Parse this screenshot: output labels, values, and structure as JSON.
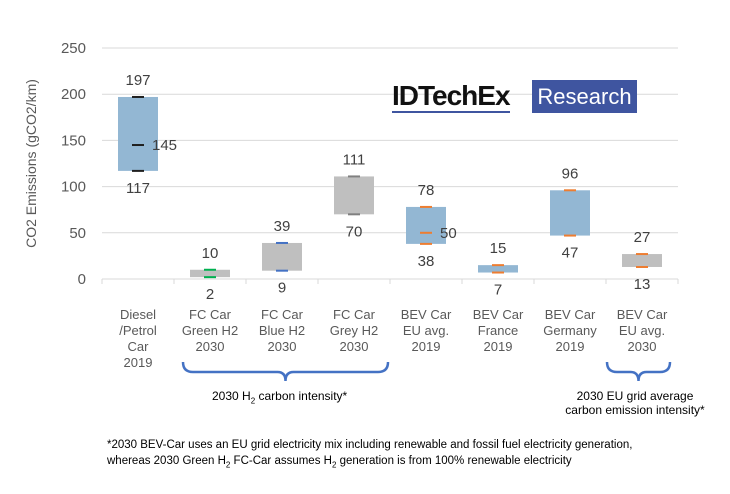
{
  "chart_data": {
    "type": "floating-bar",
    "ylabel": "CO2 Emissions (gCO2/km)",
    "ylim": [
      0,
      250
    ],
    "yticks": [
      0,
      50,
      100,
      150,
      200,
      250
    ],
    "grid": true,
    "categories": [
      [
        "Diesel",
        "/Petrol",
        "Car",
        "2019"
      ],
      [
        "FC Car",
        "Green H2",
        "2030"
      ],
      [
        "FC Car",
        "Blue H2",
        "2030"
      ],
      [
        "FC Car",
        "Grey H2",
        "2030"
      ],
      [
        "BEV Car",
        "EU avg.",
        "2019"
      ],
      [
        "BEV Car",
        "France",
        "2019"
      ],
      [
        "BEV Car",
        "Germany",
        "2019"
      ],
      [
        "BEV Car",
        "EU avg.",
        "2030"
      ]
    ],
    "ranges": [
      {
        "min": 117,
        "max": 197,
        "mid": 145,
        "fill": "#93b7d3",
        "marker": "#1f1f1f"
      },
      {
        "min": 2,
        "max": 10,
        "fill": "#bfbfbf",
        "marker": "#00b050"
      },
      {
        "min": 9,
        "max": 39,
        "fill": "#bfbfbf",
        "marker": "#4472c4"
      },
      {
        "min": 70,
        "max": 111,
        "fill": "#bfbfbf",
        "marker": "#808080"
      },
      {
        "min": 38,
        "max": 78,
        "mid": 50,
        "fill": "#93b7d3",
        "marker": "#ed7d31"
      },
      {
        "min": 7,
        "max": 15,
        "fill": "#93b7d3",
        "marker": "#ed7d31"
      },
      {
        "min": 47,
        "max": 96,
        "fill": "#93b7d3",
        "marker": "#ed7d31"
      },
      {
        "min": 13,
        "max": 27,
        "fill": "#bfbfbf",
        "marker": "#ed7d31"
      }
    ],
    "brackets": [
      {
        "label_parts": [
          "2030 H",
          "2",
          " carbon intensity*"
        ]
      },
      {
        "label_lines": [
          "2030 EU grid average",
          "carbon emission intensity*"
        ]
      }
    ]
  },
  "logo": {
    "text1": "IDTechEx",
    "text2": "Research",
    "color": "#3f55a0"
  },
  "footnote": {
    "line1": "*2030 BEV-Car uses an EU grid electricity mix including  renewable and fossil fuel electricity generation,",
    "line2_parts": [
      "whereas 2030 Green H",
      "2",
      " FC-Car assumes  H",
      "2",
      " generation is from 100% renewable electricity"
    ]
  }
}
